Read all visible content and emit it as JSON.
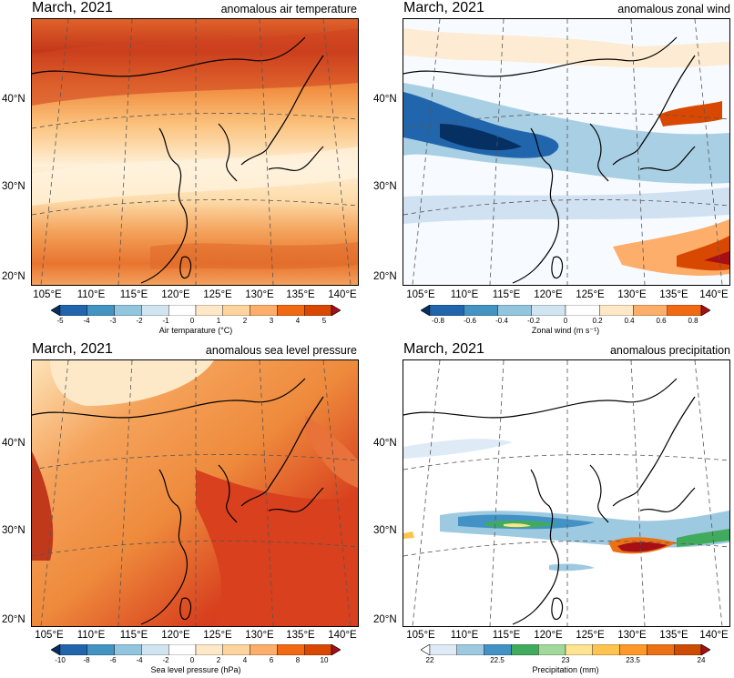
{
  "panels": [
    {
      "title_left": "March, 2021",
      "title_right": "anomalous air temperature",
      "lat_labels": [
        "40°N",
        "30°N",
        "20°N"
      ],
      "lon_labels": [
        "105°E",
        "110°E",
        "115°E",
        "120°E",
        "125°E",
        "130°E",
        "135°E",
        "140°E"
      ],
      "colorbar": {
        "label": "Air temparature (°C)",
        "ticks": [
          "-5",
          "-4",
          "-3",
          "-2",
          "-1",
          "0",
          "1",
          "2",
          "3",
          "4",
          "5"
        ],
        "colors": [
          "#053061",
          "#2166ac",
          "#4393c3",
          "#92c5de",
          "#d1e5f0",
          "#ffffff",
          "#fee8c8",
          "#fdd49e",
          "#fdae6b",
          "#f16913",
          "#d94801",
          "#a50f15"
        ]
      }
    },
    {
      "title_left": "March, 2021",
      "title_right": "anomalous zonal wind",
      "lat_labels": [
        "40°N",
        "30°N",
        "20°N"
      ],
      "lon_labels": [
        "105°E",
        "110°E",
        "115°E",
        "120°E",
        "125°E",
        "130°E",
        "135°E",
        "140°E"
      ],
      "colorbar": {
        "label": "Zonal wind (m s⁻¹)",
        "ticks": [
          "-0.8",
          "-0.6",
          "-0.4",
          "-0.2",
          "0",
          "0.2",
          "0.4",
          "0.6",
          "0.8"
        ],
        "colors": [
          "#053061",
          "#2166ac",
          "#4393c3",
          "#92c5de",
          "#d1e5f0",
          "#ffffff",
          "#fee8c8",
          "#fdae6b",
          "#f16913",
          "#a50f15"
        ]
      }
    },
    {
      "title_left": "March, 2021",
      "title_right": "anomalous sea level pressure",
      "lat_labels": [
        "40°N",
        "30°N",
        "20°N"
      ],
      "lon_labels": [
        "105°E",
        "110°E",
        "115°E",
        "120°E",
        "125°E",
        "130°E",
        "135°E",
        "140°E"
      ],
      "colorbar": {
        "label": "Sea level pressure (hPa)",
        "ticks": [
          "-10",
          "-8",
          "-6",
          "-4",
          "-2",
          "0",
          "2",
          "4",
          "6",
          "8",
          "10"
        ],
        "colors": [
          "#053061",
          "#2166ac",
          "#4393c3",
          "#92c5de",
          "#d1e5f0",
          "#ffffff",
          "#fee8c8",
          "#fdd49e",
          "#fdae6b",
          "#f16913",
          "#d94801",
          "#a50f15"
        ]
      }
    },
    {
      "title_left": "March, 2021",
      "title_right": "anomalous precipitation",
      "lat_labels": [
        "40°N",
        "30°N",
        "20°N"
      ],
      "lon_labels": [
        "105°E",
        "110°E",
        "115°E",
        "120°E",
        "125°E",
        "130°E",
        "135°E",
        "140°E"
      ],
      "colorbar": {
        "label": "Precipitation (mm)",
        "ticks": [
          "22",
          "22.5",
          "23",
          "23.5",
          "24"
        ],
        "colors": [
          "#ffffff",
          "#deebf7",
          "#9ecae1",
          "#4292c6",
          "#41ab5d",
          "#a1d99b",
          "#fee391",
          "#fec44f",
          "#fe9929",
          "#ec7014",
          "#cc4c02",
          "#a50f15"
        ]
      }
    }
  ]
}
